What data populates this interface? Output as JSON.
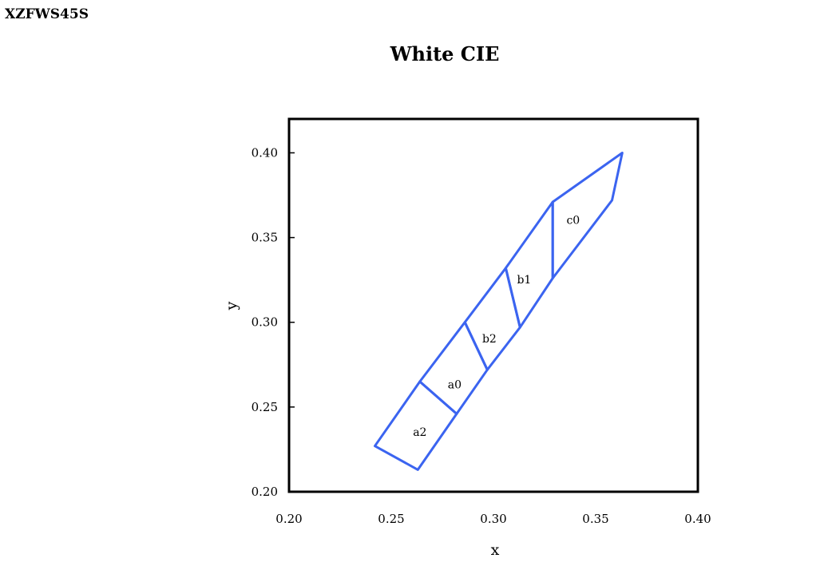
{
  "header": {
    "code": "XZFWS45S"
  },
  "chart_data": {
    "type": "line",
    "title": "White  CIE",
    "xlabel": "x",
    "ylabel": "y",
    "xlim": [
      0.2,
      0.4
    ],
    "ylim": [
      0.2,
      0.42
    ],
    "xticks": [
      "0.20",
      "0.25",
      "0.30",
      "0.35",
      "0.40"
    ],
    "xtick_values": [
      0.2,
      0.25,
      0.3,
      0.35,
      0.4
    ],
    "yticks": [
      "0.20",
      "0.25",
      "0.30",
      "0.35",
      "0.40"
    ],
    "ytick_values": [
      0.2,
      0.25,
      0.3,
      0.35,
      0.4
    ],
    "grid": false,
    "line_color": "#3b64f0",
    "regions": [
      {
        "name": "a2",
        "label_at": [
          0.264,
          0.233
        ],
        "points": [
          [
            0.242,
            0.227
          ],
          [
            0.263,
            0.213
          ],
          [
            0.282,
            0.246
          ],
          [
            0.264,
            0.265
          ]
        ]
      },
      {
        "name": "a0",
        "label_at": [
          0.281,
          0.261
        ],
        "points": [
          [
            0.264,
            0.265
          ],
          [
            0.282,
            0.246
          ],
          [
            0.297,
            0.272
          ],
          [
            0.286,
            0.3
          ]
        ]
      },
      {
        "name": "b2",
        "label_at": [
          0.298,
          0.288
        ],
        "points": [
          [
            0.286,
            0.3
          ],
          [
            0.297,
            0.272
          ],
          [
            0.313,
            0.297
          ],
          [
            0.306,
            0.332
          ]
        ]
      },
      {
        "name": "b1",
        "label_at": [
          0.315,
          0.323
        ],
        "points": [
          [
            0.306,
            0.332
          ],
          [
            0.313,
            0.297
          ],
          [
            0.329,
            0.326
          ],
          [
            0.329,
            0.371
          ]
        ]
      },
      {
        "name": "c0",
        "label_at": [
          0.339,
          0.358
        ],
        "points": [
          [
            0.329,
            0.371
          ],
          [
            0.329,
            0.326
          ],
          [
            0.358,
            0.372
          ],
          [
            0.363,
            0.4
          ]
        ]
      }
    ]
  }
}
